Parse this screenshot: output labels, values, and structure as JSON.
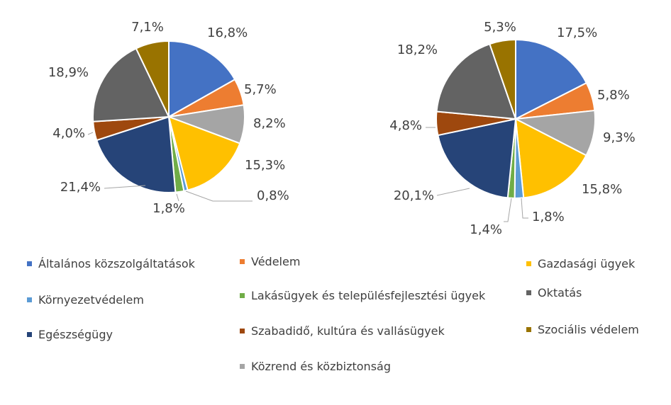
{
  "chart_data": [
    {
      "type": "pie",
      "categories": [
        "Általános közszolgáltatások",
        "Védelem",
        "Közrend és közbiztonság",
        "Gazdasági ügyek",
        "Környezetvédelem",
        "Lakásügyek és településfejlesztési ügyek",
        "Egészségügy",
        "Szabadidő, kultúra és vallásügyek",
        "Oktatás",
        "Szociális védelem"
      ],
      "values": [
        16.8,
        5.7,
        8.2,
        15.3,
        0.8,
        1.8,
        21.4,
        4.0,
        18.9,
        7.1
      ],
      "labels": [
        "16,8%",
        "5,7%",
        "8,2%",
        "15,3%",
        "0,8%",
        "1,8%",
        "21,4%",
        "4,0%",
        "18,9%",
        "7,1%"
      ]
    },
    {
      "type": "pie",
      "categories": [
        "Általános közszolgáltatások",
        "Védelem",
        "Közrend és közbiztonság",
        "Gazdasági ügyek",
        "Környezetvédelem",
        "Lakásügyek és településfejlesztési ügyek",
        "Egészségügy",
        "Szabadidő, kultúra és vallásügyek",
        "Oktatás",
        "Szociális védelem"
      ],
      "values": [
        17.5,
        5.8,
        9.3,
        15.8,
        1.8,
        1.4,
        20.1,
        4.8,
        18.2,
        5.3
      ],
      "labels": [
        "17,5%",
        "5,8%",
        "9,3%",
        "15,8%",
        "1,8%",
        "1,4%",
        "20,1%",
        "4,8%",
        "18,2%",
        "5,3%"
      ]
    }
  ],
  "colors": [
    "#4472C4",
    "#ED7D31",
    "#A5A5A5",
    "#FFC000",
    "#5B9BD5",
    "#70AD47",
    "#264478",
    "#9E480E",
    "#636363",
    "#997300"
  ],
  "legend": [
    {
      "label": "Általános közszolgáltatások",
      "color": "#4472C4"
    },
    {
      "label": "Védelem",
      "color": "#ED7D31"
    },
    {
      "label": "Gazdasági ügyek",
      "color": "#FFC000"
    },
    {
      "label": "Környezetvédelem",
      "color": "#5B9BD5"
    },
    {
      "label": "Lakásügyek és településfejlesztési ügyek",
      "color": "#70AD47"
    },
    {
      "label": "Oktatás",
      "color": "#636363"
    },
    {
      "label": "Egészségügy",
      "color": "#264478"
    },
    {
      "label": "Szabadidő, kultúra és vallásügyek",
      "color": "#9E480E"
    },
    {
      "label": "Szociális védelem",
      "color": "#997300"
    },
    {
      "label": "Közrend és közbiztonság",
      "color": "#A5A5A5"
    }
  ]
}
